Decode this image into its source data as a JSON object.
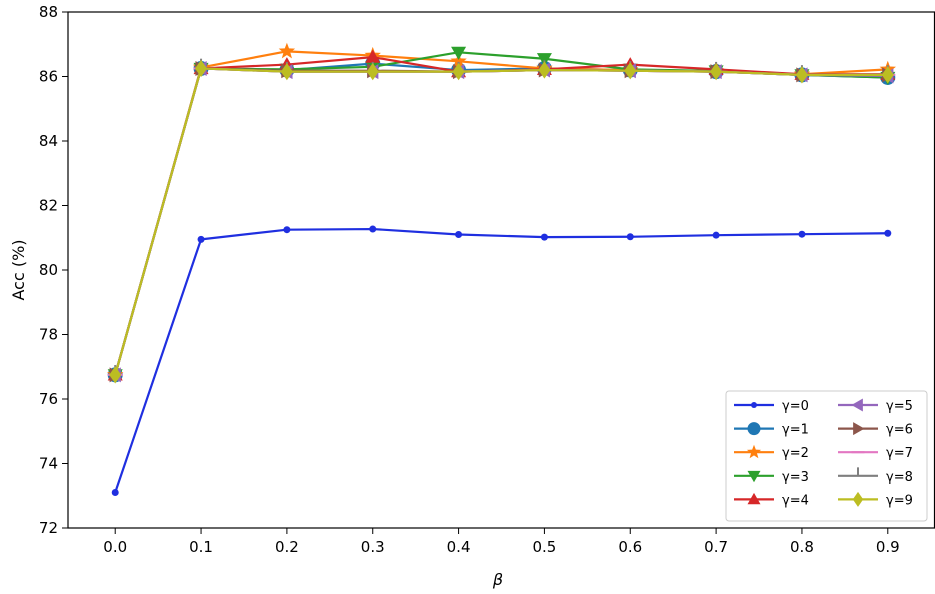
{
  "chart_data": {
    "type": "line",
    "xlabel": "β",
    "ylabel": "Acc (%)",
    "xlim": [
      -0.055,
      0.955
    ],
    "ylim": [
      72,
      88
    ],
    "x": [
      0.0,
      0.1,
      0.2,
      0.3,
      0.4,
      0.5,
      0.6,
      0.7,
      0.8,
      0.9
    ],
    "x_ticks": [
      "0.0",
      "0.1",
      "0.2",
      "0.3",
      "0.4",
      "0.5",
      "0.6",
      "0.7",
      "0.8",
      "0.9"
    ],
    "y_ticks": [
      "72",
      "74",
      "76",
      "78",
      "80",
      "82",
      "84",
      "86",
      "88"
    ],
    "grid": false,
    "legend_position": "lower-right",
    "legend_columns": 2,
    "series": [
      {
        "name": "γ=0",
        "color": "#1f2fe0",
        "marker": "circle-small",
        "values": [
          73.1,
          80.95,
          81.25,
          81.27,
          81.1,
          81.02,
          81.03,
          81.08,
          81.11,
          81.14
        ]
      },
      {
        "name": "γ=1",
        "color": "#1f77b4",
        "marker": "circle",
        "values": [
          76.75,
          86.25,
          86.2,
          86.4,
          86.2,
          86.25,
          86.2,
          86.15,
          86.05,
          85.97
        ]
      },
      {
        "name": "γ=2",
        "color": "#ff7f0e",
        "marker": "star",
        "values": [
          76.75,
          86.28,
          86.78,
          86.65,
          86.47,
          86.25,
          86.2,
          86.17,
          86.07,
          86.22
        ]
      },
      {
        "name": "γ=3",
        "color": "#2ca02c",
        "marker": "triangle-down",
        "values": [
          76.75,
          86.25,
          86.22,
          86.3,
          86.75,
          86.55,
          86.22,
          86.17,
          86.05,
          85.97
        ]
      },
      {
        "name": "γ=4",
        "color": "#d62728",
        "marker": "triangle-up",
        "values": [
          76.75,
          86.25,
          86.37,
          86.6,
          86.15,
          86.22,
          86.37,
          86.22,
          86.07,
          86.07
        ]
      },
      {
        "name": "γ=5",
        "color": "#9467bd",
        "marker": "triangle-left",
        "values": [
          76.75,
          86.25,
          86.15,
          86.15,
          86.15,
          86.2,
          86.18,
          86.15,
          86.05,
          86.02
        ]
      },
      {
        "name": "γ=6",
        "color": "#8c564b",
        "marker": "triangle-right",
        "values": [
          76.75,
          86.25,
          86.18,
          86.18,
          86.15,
          86.2,
          86.18,
          86.15,
          86.05,
          86.05
        ]
      },
      {
        "name": "γ=7",
        "color": "#e377c2",
        "marker": "hline",
        "values": [
          76.75,
          86.25,
          86.15,
          86.15,
          86.15,
          86.2,
          86.18,
          86.15,
          86.05,
          86.05
        ]
      },
      {
        "name": "γ=8",
        "color": "#7f7f7f",
        "marker": "tick-up",
        "values": [
          76.75,
          86.25,
          86.15,
          86.15,
          86.15,
          86.2,
          86.18,
          86.15,
          86.05,
          86.05
        ]
      },
      {
        "name": "γ=9",
        "color": "#bcbd22",
        "marker": "thin-diamond",
        "values": [
          76.75,
          86.25,
          86.15,
          86.15,
          86.15,
          86.2,
          86.18,
          86.15,
          86.05,
          86.05
        ]
      }
    ]
  }
}
